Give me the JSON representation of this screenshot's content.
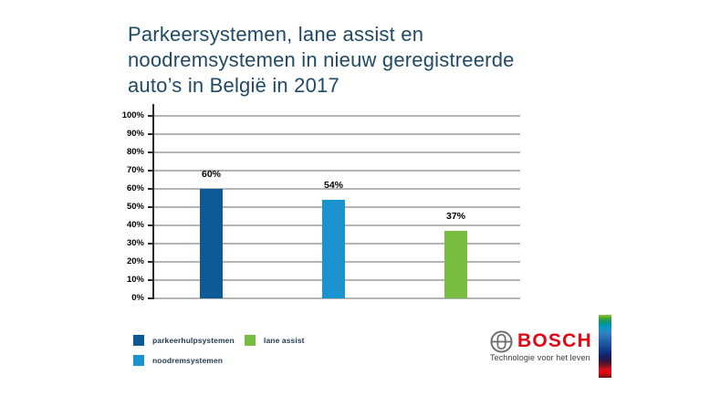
{
  "title": {
    "lines": [
      "Parkeersystemen, lane assist en",
      "noodremsystemen in nieuw geregistreerde",
      "auto’s in België in 2017"
    ]
  },
  "chart_data": {
    "type": "bar",
    "title": "Parkeersystemen, lane assist en noodremsystemen in nieuw geregistreerde auto’s in België in 2017",
    "categories": [
      "parkeerhulpsystemen",
      "noodremsystemen",
      "lane assist"
    ],
    "values": [
      60,
      54,
      37
    ],
    "value_labels": [
      "60%",
      "54%",
      "37%"
    ],
    "bar_colors": [
      "#0d5a96",
      "#1b93d0",
      "#78bc42"
    ],
    "xlabel": "",
    "ylabel": "",
    "ylim": [
      0,
      100
    ],
    "ytick_step": 10,
    "ytick_labels": [
      "0%",
      "10%",
      "20%",
      "30%",
      "40%",
      "50%",
      "60%",
      "70%",
      "80%",
      "90%",
      "100%"
    ],
    "grid": true,
    "legend_position": "bottom-left"
  },
  "legend": {
    "items": [
      {
        "label": "parkeerhulpsystemen",
        "color": "#0d5a96"
      },
      {
        "label": "noodremsystemen",
        "color": "#1b93d0"
      },
      {
        "label": "lane assist",
        "color": "#78bc42"
      }
    ]
  },
  "logo": {
    "brand": "BOSCH",
    "tagline": "Technologie voor het leven",
    "brand_color": "#e30613",
    "symbol_color": "#6e6e6e",
    "stripe_stops": [
      {
        "c": "#8cc63f",
        "p": 0
      },
      {
        "c": "#4ba52f",
        "p": 5
      },
      {
        "c": "#149a62",
        "p": 10
      },
      {
        "c": "#00979c",
        "p": 15
      },
      {
        "c": "#0e93cc",
        "p": 21
      },
      {
        "c": "#2f84c4",
        "p": 28
      },
      {
        "c": "#2a6fb4",
        "p": 36
      },
      {
        "c": "#1f5aa5",
        "p": 44
      },
      {
        "c": "#174a97",
        "p": 50
      },
      {
        "c": "#123a88",
        "p": 57
      },
      {
        "c": "#0f2668",
        "p": 64
      },
      {
        "c": "#201a52",
        "p": 70
      },
      {
        "c": "#4a1433",
        "p": 76
      },
      {
        "c": "#8e1220",
        "p": 82
      },
      {
        "c": "#d8111b",
        "p": 87
      },
      {
        "c": "#e30613",
        "p": 92
      },
      {
        "c": "#9c1016",
        "p": 97
      },
      {
        "c": "#6b0d12",
        "p": 100
      }
    ]
  },
  "colors": {
    "title": "#1e4a66",
    "grid": "#b4b4b4",
    "axis": "#2b2b2b",
    "tick_label": "#000000",
    "legend_text": "#223c50"
  }
}
